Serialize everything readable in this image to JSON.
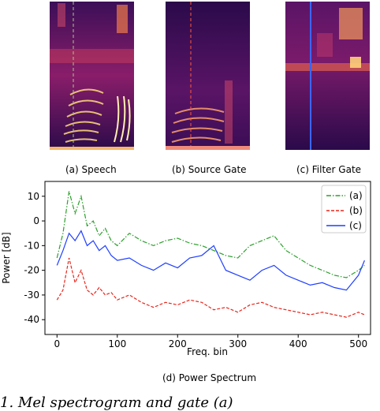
{
  "captions": {
    "a": "(a) Speech",
    "b": "(b) Source Gate",
    "c": "(c) Filter Gate",
    "d": "(d) Power Spectrum"
  },
  "footer_text": "1.  Mel spectrogram and gate (a)",
  "colors": {
    "a": "#2ca02c",
    "b": "#e8261c",
    "c": "#1f3fff"
  },
  "chart_data": {
    "type": "line",
    "xlabel": "Freq. bin",
    "ylabel": "Power [dB]",
    "xlim": [
      -20,
      520
    ],
    "ylim": [
      -46,
      16
    ],
    "xticks": [
      0,
      100,
      200,
      300,
      400,
      500
    ],
    "yticks": [
      10,
      0,
      -10,
      -20,
      -30,
      -40
    ],
    "legend_position": "top-right",
    "series": [
      {
        "name": "(a)",
        "style": "dash-dot",
        "x": [
          0,
          10,
          20,
          30,
          40,
          50,
          60,
          70,
          80,
          90,
          100,
          120,
          140,
          160,
          180,
          200,
          220,
          240,
          260,
          280,
          300,
          320,
          340,
          360,
          380,
          400,
          420,
          440,
          460,
          480,
          500,
          510
        ],
        "y": [
          -15,
          -5,
          12,
          3,
          10,
          -2,
          0,
          -6,
          -3,
          -8,
          -10,
          -5,
          -8,
          -10,
          -8,
          -7,
          -9,
          -10,
          -12,
          -14,
          -15,
          -10,
          -8,
          -6,
          -12,
          -15,
          -18,
          -20,
          -22,
          -23,
          -20,
          -18
        ]
      },
      {
        "name": "(b)",
        "style": "dashed",
        "x": [
          0,
          10,
          20,
          30,
          40,
          50,
          60,
          70,
          80,
          90,
          100,
          120,
          140,
          160,
          180,
          200,
          220,
          240,
          260,
          280,
          300,
          320,
          340,
          360,
          380,
          400,
          420,
          440,
          460,
          480,
          500,
          510
        ],
        "y": [
          -32,
          -28,
          -15,
          -25,
          -20,
          -28,
          -30,
          -27,
          -30,
          -29,
          -32,
          -30,
          -33,
          -35,
          -33,
          -34,
          -32,
          -33,
          -36,
          -35,
          -37,
          -34,
          -33,
          -35,
          -36,
          -37,
          -38,
          -37,
          -38,
          -39,
          -37,
          -38
        ]
      },
      {
        "name": "(c)",
        "style": "solid",
        "x": [
          0,
          10,
          20,
          30,
          40,
          50,
          60,
          70,
          80,
          90,
          100,
          120,
          140,
          160,
          180,
          200,
          220,
          240,
          260,
          280,
          300,
          320,
          340,
          360,
          380,
          400,
          420,
          440,
          460,
          480,
          500,
          510
        ],
        "y": [
          -18,
          -12,
          -5,
          -8,
          -4,
          -10,
          -8,
          -12,
          -10,
          -14,
          -16,
          -15,
          -18,
          -20,
          -17,
          -19,
          -15,
          -14,
          -10,
          -20,
          -22,
          -24,
          -20,
          -18,
          -22,
          -24,
          -26,
          -25,
          -27,
          -28,
          -22,
          -16
        ]
      }
    ]
  }
}
